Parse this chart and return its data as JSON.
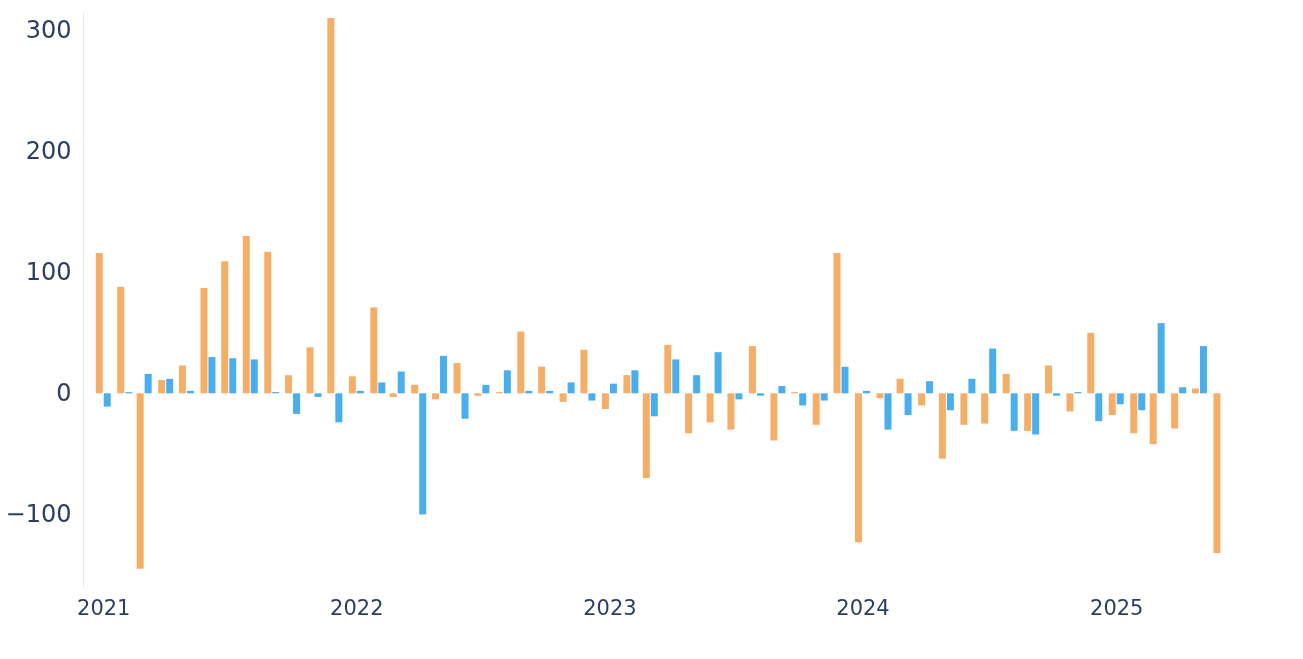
{
  "chart_data": {
    "type": "bar",
    "x": [
      "2021-01",
      "2021-02",
      "2021-03",
      "2021-04",
      "2021-05",
      "2021-06",
      "2021-07",
      "2021-08",
      "2021-09",
      "2021-10",
      "2021-11",
      "2021-12",
      "2022-01",
      "2022-02",
      "2022-03",
      "2022-04",
      "2022-05",
      "2022-06",
      "2022-07",
      "2022-08",
      "2022-09",
      "2022-10",
      "2022-11",
      "2022-12",
      "2023-01",
      "2023-02",
      "2023-03",
      "2023-04",
      "2023-05",
      "2023-06",
      "2023-07",
      "2023-08",
      "2023-09",
      "2023-10",
      "2023-11",
      "2023-12",
      "2024-01",
      "2024-02",
      "2024-03",
      "2024-04",
      "2024-05",
      "2024-06",
      "2024-07",
      "2024-08",
      "2024-09",
      "2024-10",
      "2024-11",
      "2024-12",
      "2025-01",
      "2025-02",
      "2025-03",
      "2025-04",
      "2025-05",
      "2025-06"
    ],
    "series": [
      {
        "color": "#f5ae68",
        "values": [
          116,
          88,
          -145,
          11,
          23,
          87,
          109,
          130,
          117,
          15,
          38,
          310,
          14,
          71,
          -3,
          7,
          -5,
          25,
          -2,
          1,
          51,
          22,
          -7,
          36,
          -13,
          15,
          -70,
          40,
          -33,
          -24,
          -30,
          39,
          -39,
          1,
          -26,
          116,
          -123,
          -4,
          12,
          -10,
          -54,
          -26,
          -25,
          16,
          -31,
          23,
          -15,
          50,
          -18,
          -33,
          -42,
          -29,
          4,
          -132
        ]
      },
      {
        "color": "#49aeee",
        "values": [
          -11,
          1,
          16,
          12,
          2,
          30,
          29,
          28,
          1,
          -17,
          -3,
          -24,
          2,
          9,
          18,
          -100,
          31,
          -21,
          7,
          19,
          2,
          2,
          9,
          -6,
          8,
          19,
          -19,
          28,
          15,
          34,
          -5,
          -2,
          6,
          -10,
          -6,
          22,
          2,
          -30,
          -18,
          10,
          -14,
          12,
          37,
          -31,
          -34,
          -2,
          1,
          -23,
          -9,
          -14,
          58,
          5,
          39,
          null
        ]
      }
    ],
    "xlim": [
      "2020-12-10",
      "2025-07-10"
    ],
    "xticks": [
      "2021",
      "2022",
      "2023",
      "2024",
      "2025"
    ],
    "ylim": [
      -160,
      315
    ],
    "yticks": [
      -100,
      0,
      100,
      200,
      300
    ],
    "grid": false,
    "legend": false
  }
}
